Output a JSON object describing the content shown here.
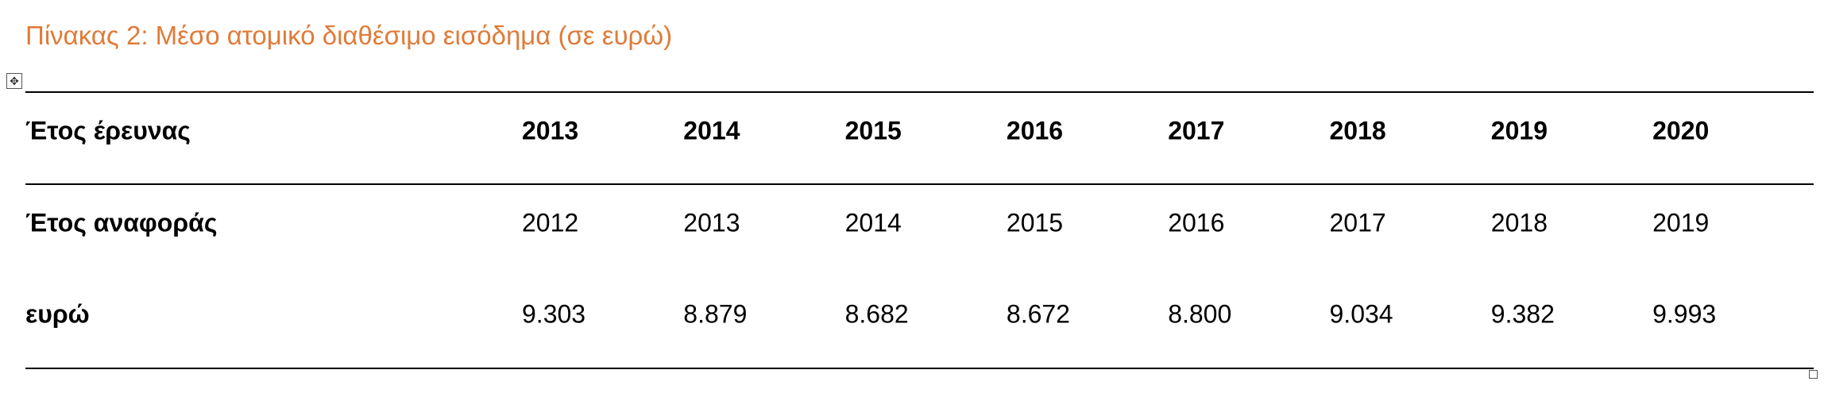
{
  "header": {
    "title": "Πίνακας 2: Μέσο ατομικό διαθέσιμο εισόδημα (σε ευρώ)"
  },
  "table": {
    "header": [
      "Έτος έρευνας",
      "2013",
      "2014",
      "2015",
      "2016",
      "2017",
      "2018",
      "2019",
      "2020"
    ],
    "rows": [
      [
        "Έτος αναφοράς",
        "2012",
        "2013",
        "2014",
        "2015",
        "2016",
        "2017",
        "2018",
        "2019"
      ],
      [
        "ευρώ",
        "9.303",
        "8.879",
        "8.682",
        "8.672",
        "8.800",
        "9.034",
        "9.382",
        "9.993"
      ]
    ]
  }
}
